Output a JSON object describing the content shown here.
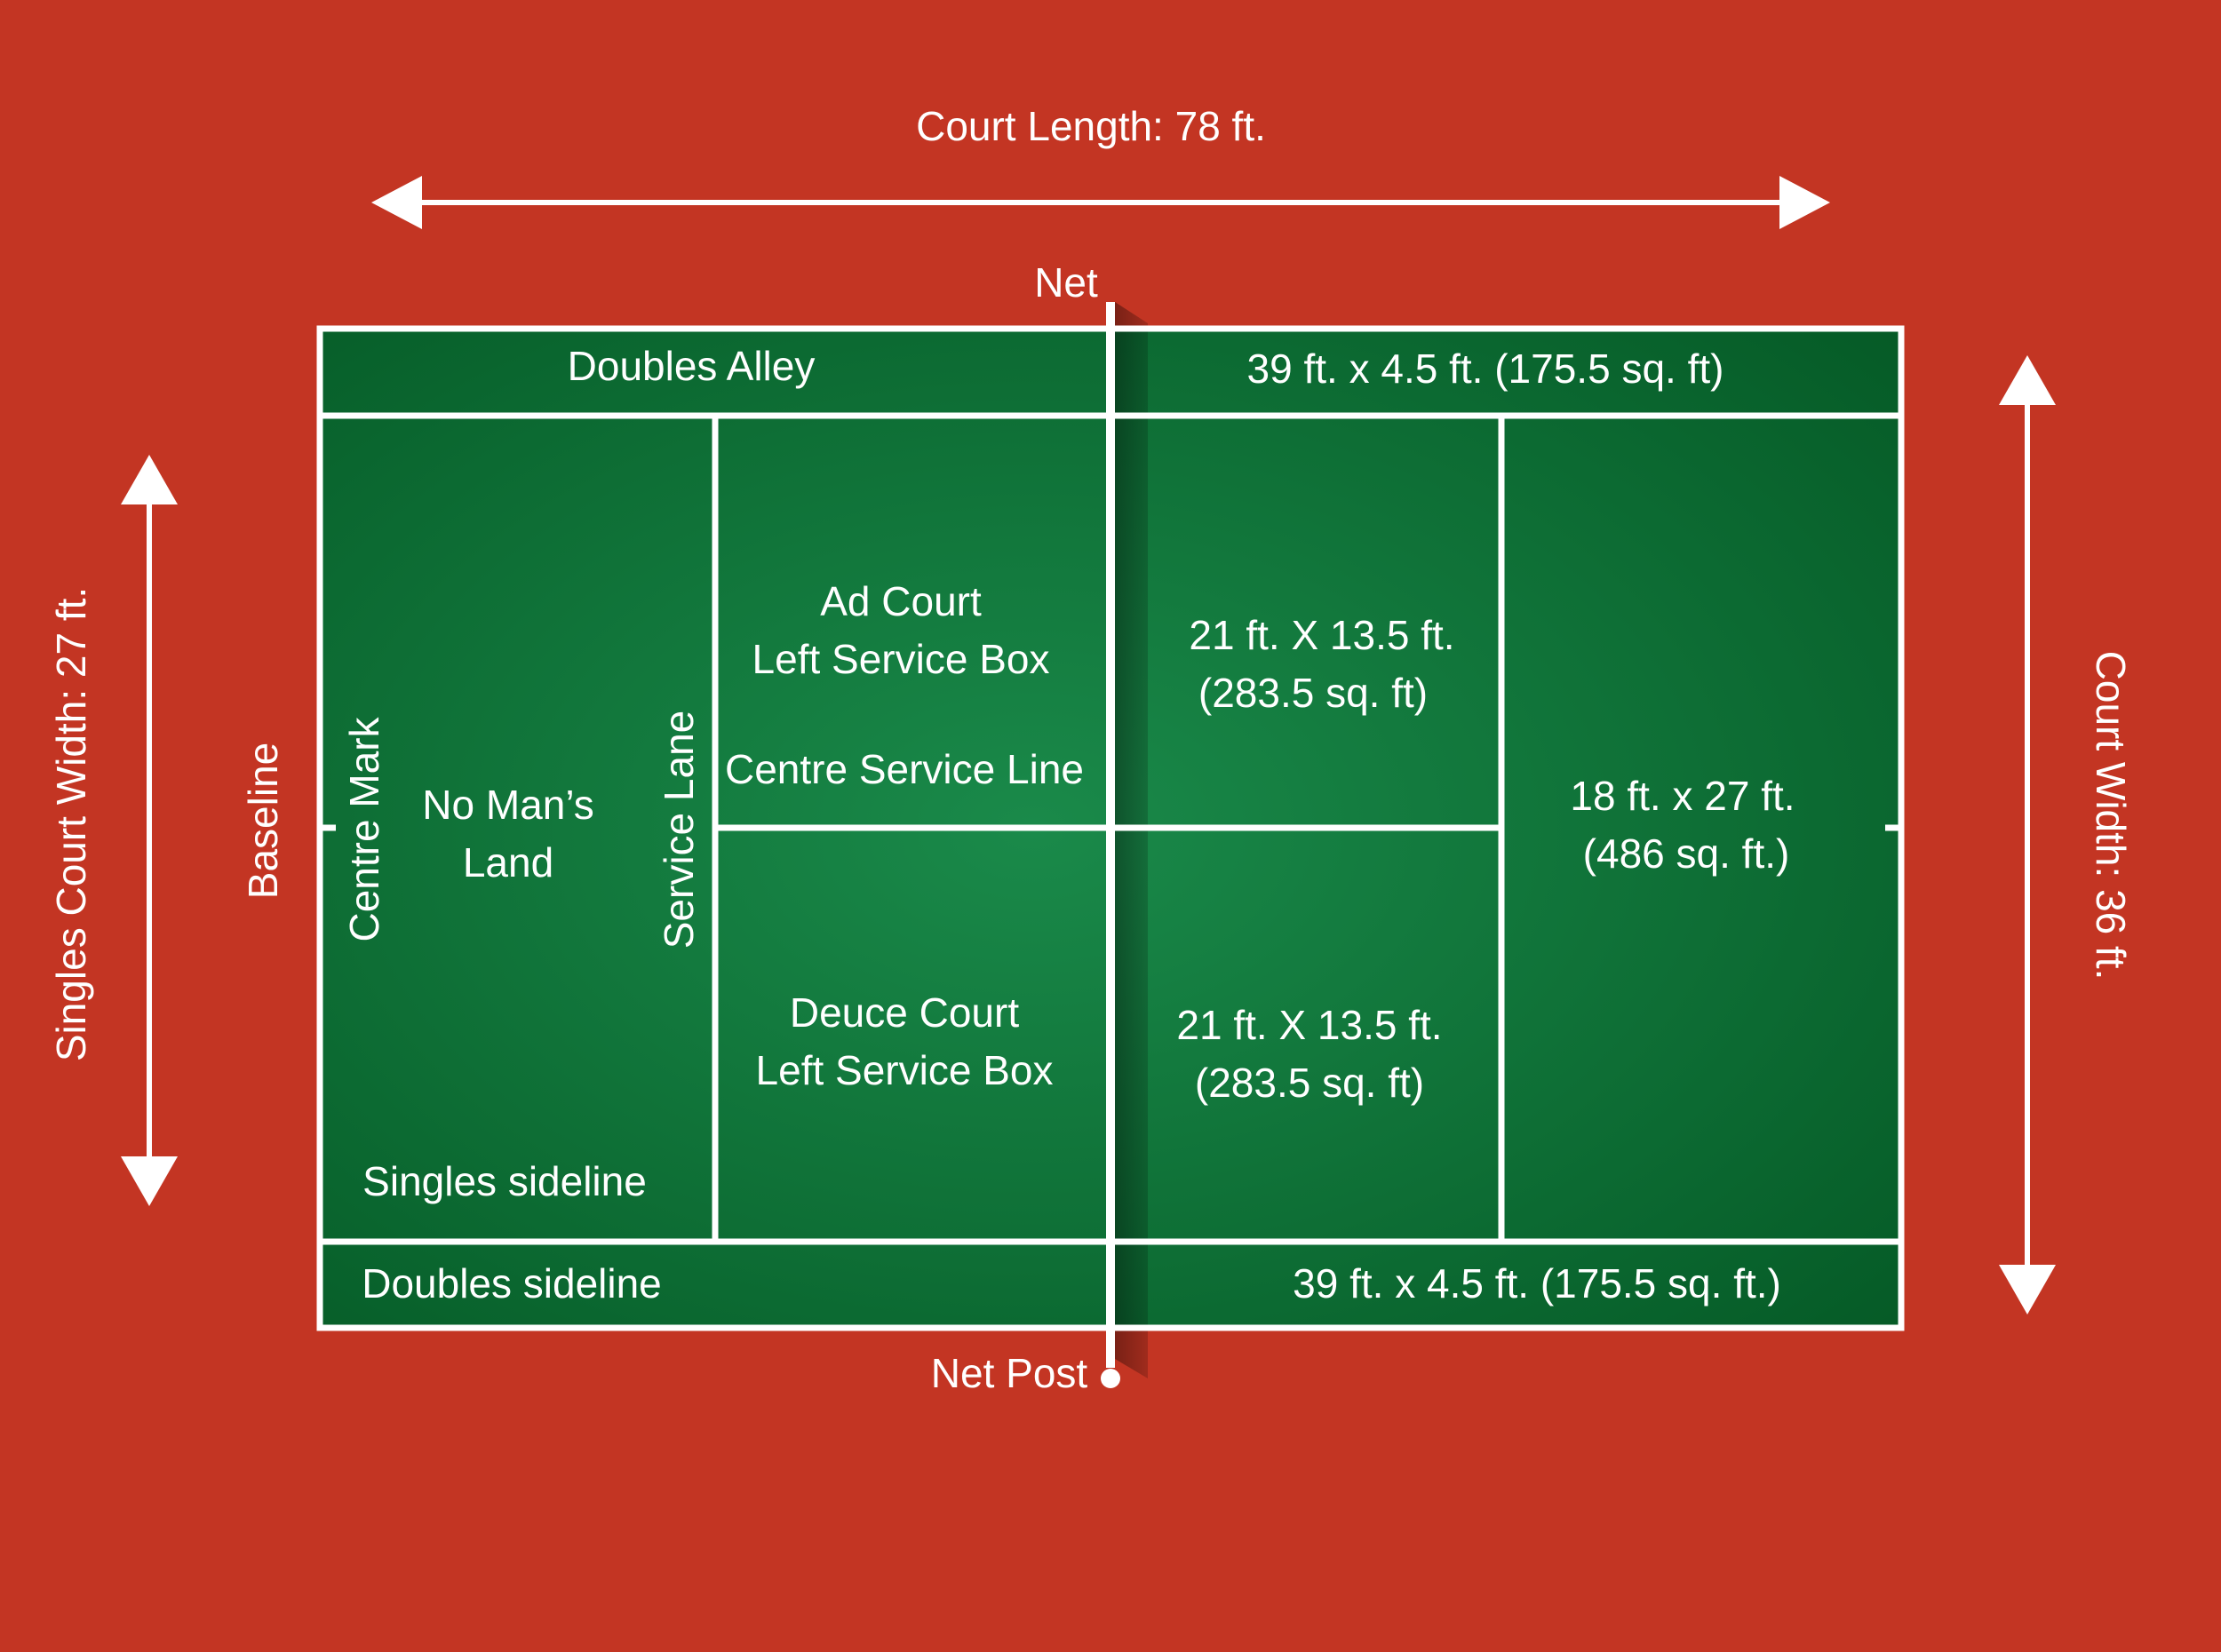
{
  "colors": {
    "background": "#c33523",
    "court_light": "#1a8a4a",
    "court_dark": "#055a26",
    "lines": "#ffffff",
    "net_shadow": "#7a1d12"
  },
  "dimensions": {
    "court_length": "Court Length: 78 ft.",
    "court_width": "Court Width: 36 ft.",
    "singles_court_width": "Singles Court Width: 27 ft."
  },
  "net": {
    "net_label": "Net",
    "net_post_label": "Net Post"
  },
  "left_half": {
    "doubles_alley": "Doubles Alley",
    "baseline": "Baseline",
    "centre_mark": "Centre Mark",
    "no_mans_land": [
      "No Man’s",
      "Land"
    ],
    "service_lane": "Service Lane",
    "singles_sideline": "Singles sideline",
    "doubles_sideline": "Doubles sideline",
    "ad_court": [
      "Ad Court",
      "Left Service Box"
    ],
    "centre_service_line": "Centre Service Line",
    "deuce_court": [
      "Deuce Court",
      "Left Service Box"
    ]
  },
  "right_half": {
    "alley_top_area": "39 ft. x 4.5 ft. (175.5 sq. ft)",
    "alley_bottom_area": "39 ft. x 4.5 ft. (175.5 sq. ft.)",
    "service_box_top_area": [
      "21 ft. X 13.5 ft.",
      "(283.5 sq. ft)"
    ],
    "service_box_bottom_area": [
      "21 ft. X 13.5 ft.",
      "(283.5 sq. ft)"
    ],
    "back_court_area": [
      "18 ft. x 27 ft.",
      "(486 sq. ft.)"
    ]
  }
}
